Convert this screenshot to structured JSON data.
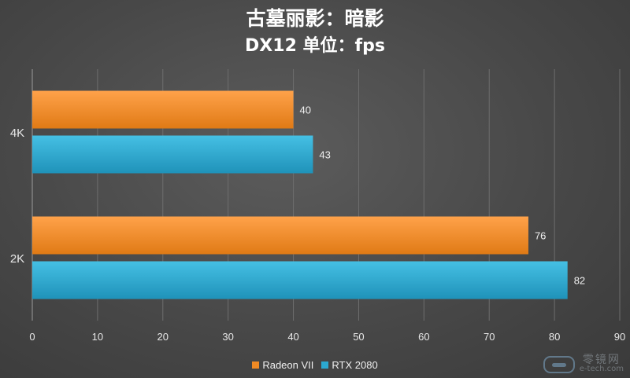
{
  "chart_data": {
    "type": "bar",
    "orientation": "horizontal",
    "title": "古墓丽影：暗影",
    "subtitle": "DX12 单位：fps",
    "categories": [
      "4K",
      "2K"
    ],
    "series": [
      {
        "name": "Radeon VII",
        "color": "#f08a24",
        "values": [
          40,
          76
        ]
      },
      {
        "name": "RTX 2080",
        "color": "#2ba8cf",
        "values": [
          43,
          82
        ]
      }
    ],
    "xlim": [
      0,
      90
    ],
    "xticks": [
      0,
      10,
      20,
      30,
      40,
      50,
      60,
      70,
      80,
      90
    ],
    "grid": true,
    "data_labels": true,
    "legend_position": "bottom"
  },
  "watermark": {
    "text": "零镜网",
    "url": "e-tech.com"
  }
}
